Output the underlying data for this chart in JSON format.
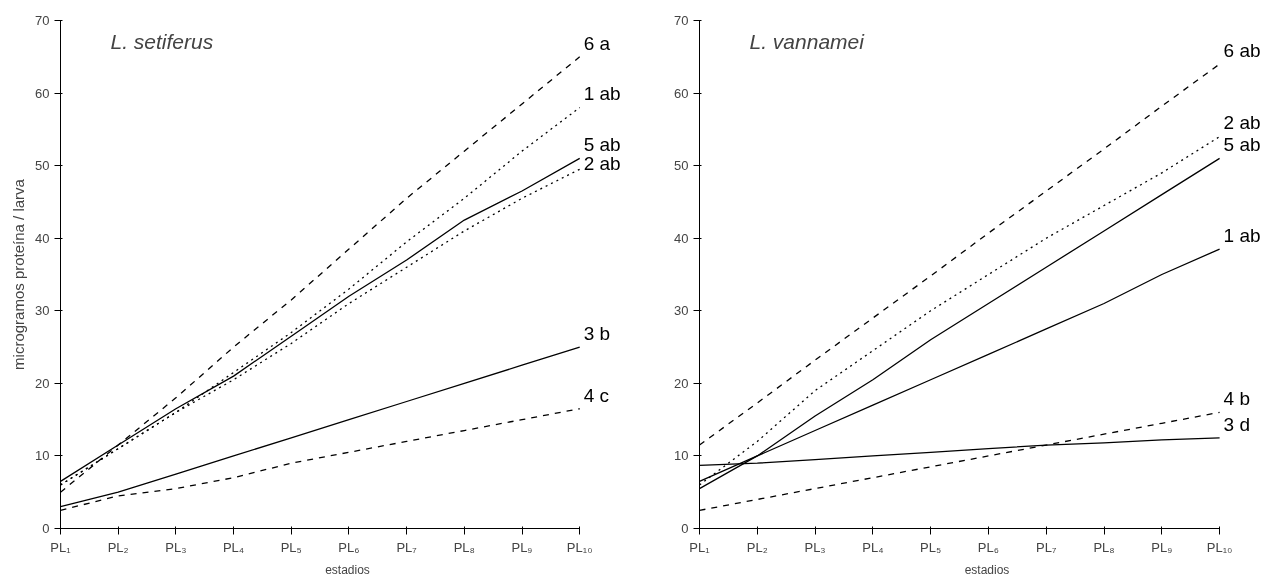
{
  "chart_data": [
    {
      "type": "line",
      "title": "L. setiferus",
      "xlabel": "estadios",
      "ylabel": "microgramos proteína / larva",
      "ylim": [
        0,
        70
      ],
      "categories": [
        "PL₁",
        "PL₂",
        "PL₃",
        "PL₄",
        "PL₅",
        "PL₆",
        "PL₇",
        "PL₈",
        "PL₉",
        "PL₁₀"
      ],
      "yticks": [
        0,
        10,
        20,
        30,
        40,
        50,
        60,
        70
      ],
      "grid": false,
      "legend": false,
      "marker": "none",
      "series": [
        {
          "name": "6 a",
          "color": "#000000",
          "line_style": "dashed",
          "values": [
            5,
            11.5,
            18,
            25,
            31.5,
            38.5,
            45.5,
            52,
            58.5,
            65
          ]
        },
        {
          "name": "1 ab",
          "color": "#000000",
          "line_style": "dotted",
          "values": [
            6,
            11,
            16,
            21.5,
            27,
            33,
            39.5,
            45.5,
            52,
            58
          ]
        },
        {
          "name": "5 ab",
          "color": "#000000",
          "line_style": "solid",
          "values": [
            6.5,
            11.5,
            16.5,
            21,
            26.5,
            32,
            37,
            42.5,
            46.5,
            51
          ]
        },
        {
          "name": "2 ab",
          "color": "#000000",
          "line_style": "dotted",
          "values": [
            6,
            11,
            16,
            20.5,
            25.5,
            31,
            36,
            41,
            45.5,
            49.5
          ]
        },
        {
          "name": "3 b",
          "color": "#000000",
          "line_style": "solid",
          "values": [
            3,
            5,
            7.5,
            10,
            12.5,
            15,
            17.5,
            20,
            22.5,
            25
          ]
        },
        {
          "name": "4 c",
          "color": "#000000",
          "line_style": "dashed",
          "values": [
            2.5,
            4.5,
            5.5,
            7,
            9,
            10.5,
            12,
            13.5,
            15,
            16.5
          ]
        }
      ]
    },
    {
      "type": "line",
      "title": "L. vannamei",
      "xlabel": "estadios",
      "ylim": [
        0,
        70
      ],
      "categories": [
        "PL₁",
        "PL₂",
        "PL₃",
        "PL₄",
        "PL₅",
        "PL₆",
        "PL₇",
        "PL₈",
        "PL₉",
        "PL₁₀"
      ],
      "yticks": [
        0,
        10,
        20,
        30,
        40,
        50,
        60,
        70
      ],
      "grid": false,
      "legend": false,
      "marker": "none",
      "series": [
        {
          "name": "6 ab",
          "color": "#000000",
          "line_style": "dashed",
          "values": [
            11.5,
            17.3,
            23.2,
            29,
            34.8,
            40.7,
            46.5,
            52.3,
            58.2,
            64
          ]
        },
        {
          "name": "2 ab",
          "color": "#000000",
          "line_style": "dotted",
          "values": [
            6,
            12,
            19,
            24.5,
            30,
            35,
            40,
            44.5,
            49,
            54
          ]
        },
        {
          "name": "5 ab",
          "color": "#000000",
          "line_style": "solid",
          "values": [
            5.5,
            10,
            15.5,
            20.5,
            26,
            31,
            36,
            41,
            46,
            51
          ]
        },
        {
          "name": "1 ab",
          "color": "#000000",
          "line_style": "solid",
          "values": [
            6.5,
            10,
            13.5,
            17,
            20.5,
            24,
            27.5,
            31,
            35,
            38.5
          ]
        },
        {
          "name": "4 b",
          "color": "#000000",
          "line_style": "dashed",
          "values": [
            2.5,
            4,
            5.5,
            7,
            8.5,
            10,
            11.5,
            13,
            14.5,
            16
          ]
        },
        {
          "name": "3 d",
          "color": "#000000",
          "line_style": "solid",
          "values": [
            8.7,
            9,
            9.5,
            10,
            10.5,
            11,
            11.5,
            11.8,
            12.2,
            12.5
          ]
        }
      ]
    }
  ]
}
